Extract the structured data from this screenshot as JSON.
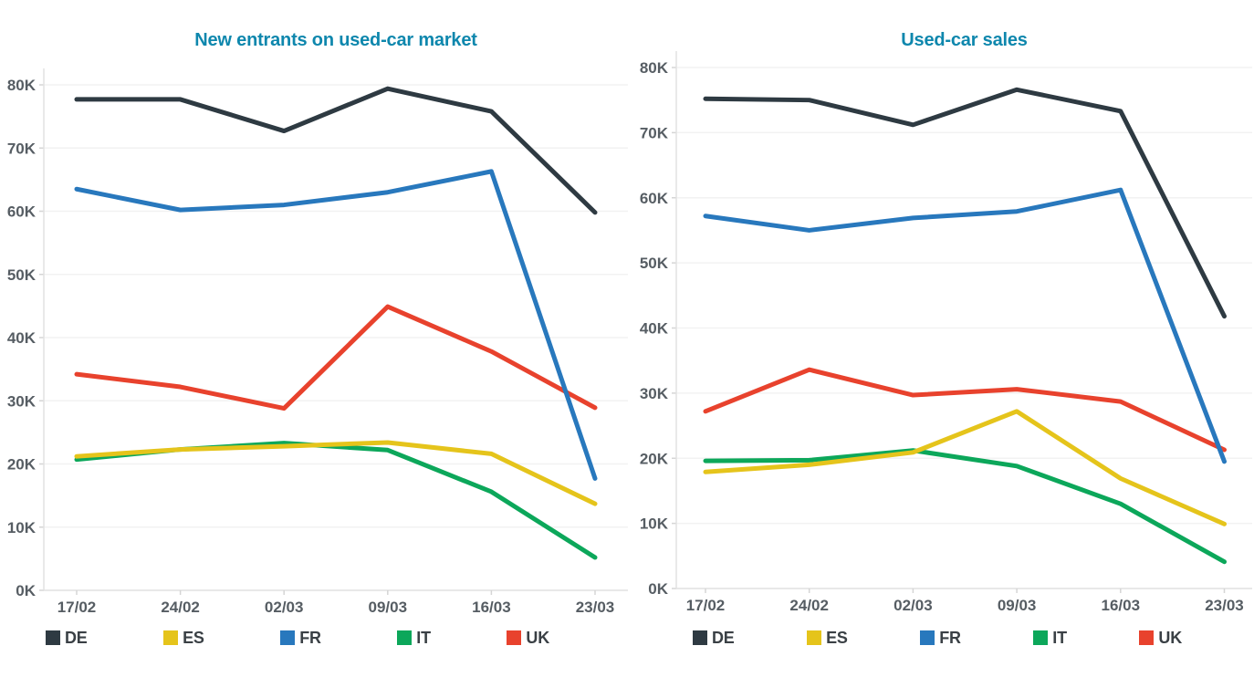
{
  "chart_data": [
    {
      "type": "line",
      "title": "New entrants on used-car market",
      "title_color": "#0e87ad",
      "x_labels": [
        "17/02",
        "24/02",
        "02/03",
        "09/03",
        "16/03",
        "23/03"
      ],
      "y_tick_labels": [
        "0K",
        "10K",
        "20K",
        "30K",
        "40K",
        "50K",
        "60K",
        "70K",
        "80K"
      ],
      "ylim": [
        0,
        80000
      ],
      "grid": "horizontal",
      "legend_position": "bottom",
      "series": [
        {
          "name": "DE",
          "color": "#2e3a42",
          "values": [
            77700,
            77700,
            72700,
            79400,
            75800,
            59800
          ]
        },
        {
          "name": "ES",
          "color": "#e5c41b",
          "values": [
            21200,
            22300,
            22800,
            23400,
            21600,
            13700
          ]
        },
        {
          "name": "FR",
          "color": "#2878bd",
          "values": [
            63500,
            60200,
            61000,
            63000,
            66300,
            17700
          ]
        },
        {
          "name": "IT",
          "color": "#0ca75a",
          "values": [
            20700,
            22300,
            23300,
            22200,
            15600,
            5200
          ]
        },
        {
          "name": "UK",
          "color": "#e8422d",
          "values": [
            34200,
            32200,
            28800,
            44900,
            37800,
            28900
          ]
        }
      ]
    },
    {
      "type": "line",
      "title": "Used-car sales",
      "title_color": "#0e87ad",
      "x_labels": [
        "17/02",
        "24/02",
        "02/03",
        "09/03",
        "16/03",
        "23/03"
      ],
      "y_tick_labels": [
        "0K",
        "10K",
        "20K",
        "30K",
        "40K",
        "50K",
        "60K",
        "70K",
        "80K"
      ],
      "ylim": [
        0,
        80000
      ],
      "grid": "horizontal",
      "legend_position": "bottom",
      "series": [
        {
          "name": "DE",
          "color": "#2e3a42",
          "values": [
            75200,
            75000,
            71200,
            76600,
            73300,
            41800
          ]
        },
        {
          "name": "ES",
          "color": "#e5c41b",
          "values": [
            17900,
            19000,
            20900,
            27200,
            16900,
            9900
          ]
        },
        {
          "name": "FR",
          "color": "#2878bd",
          "values": [
            57200,
            55000,
            56900,
            57900,
            61200,
            19500
          ]
        },
        {
          "name": "IT",
          "color": "#0ca75a",
          "values": [
            19600,
            19700,
            21200,
            18800,
            13000,
            4100
          ]
        },
        {
          "name": "UK",
          "color": "#e8422d",
          "values": [
            27200,
            33600,
            29700,
            30600,
            28700,
            21300
          ]
        }
      ]
    }
  ],
  "styles": {
    "axis_label_color": "#565d63",
    "gridline_color": "#f2f2f2",
    "axis_line_color": "#e2e2e2",
    "tick_mark_color": "#d5d5d5",
    "background": "#ffffff"
  }
}
